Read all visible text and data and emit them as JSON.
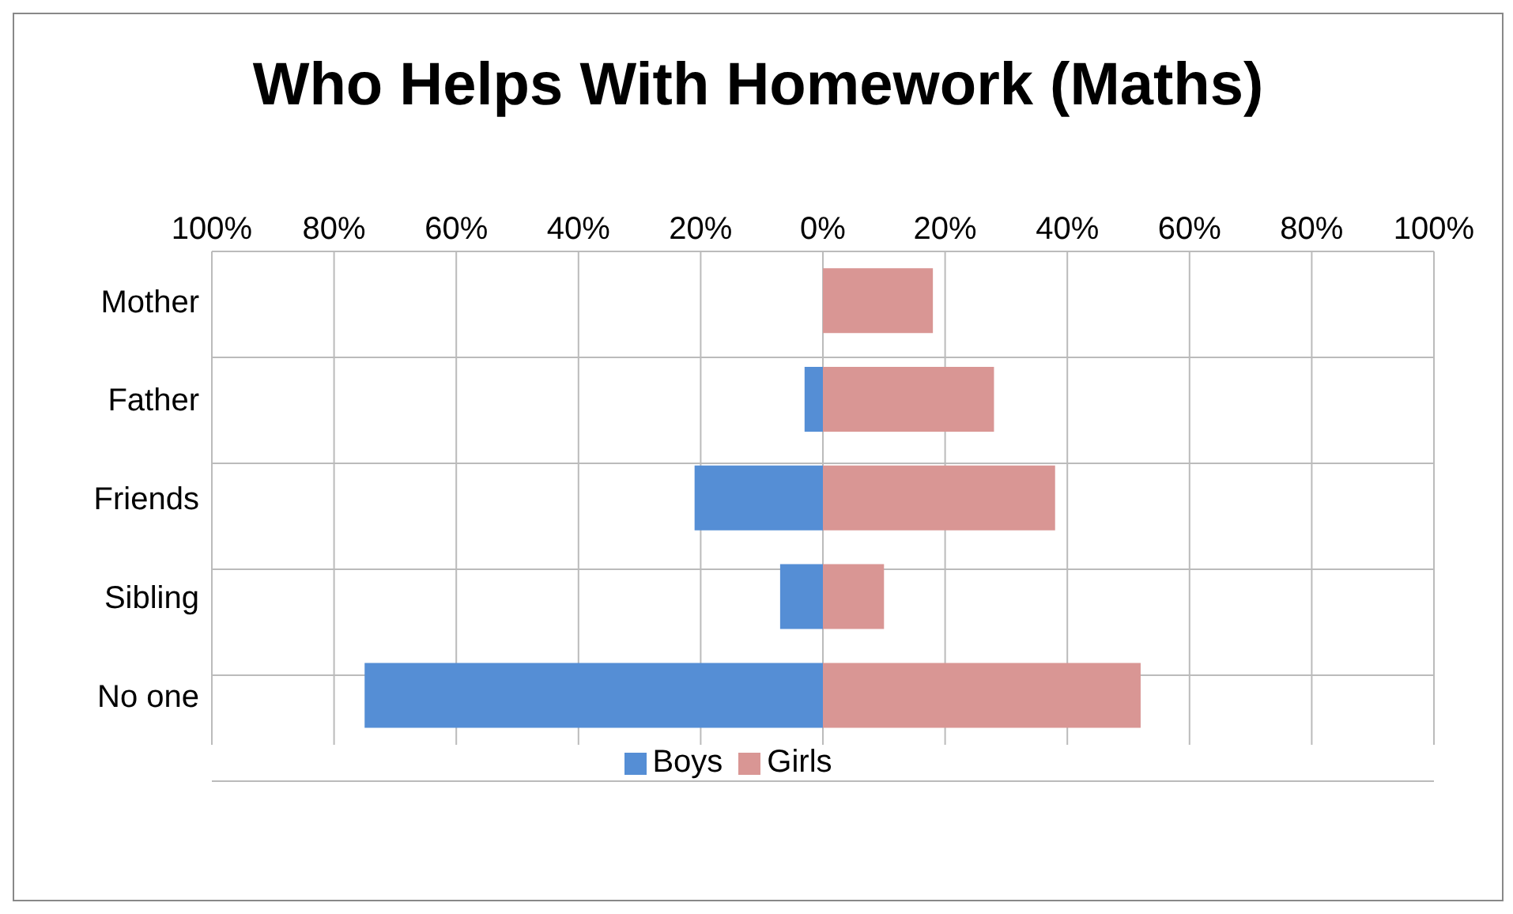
{
  "chart_data": {
    "type": "bar",
    "title": "Who Helps With Homework (Maths)",
    "orientation": "horizontal",
    "stacked": true,
    "categories": [
      "Mother",
      "Father",
      "Friends",
      "Sibling",
      "No one"
    ],
    "series": [
      {
        "name": "Boys",
        "color": "#558ed5",
        "values": [
          0,
          -3,
          -21,
          -7,
          -75
        ]
      },
      {
        "name": "Girls",
        "color": "#d99694",
        "values": [
          18,
          28,
          38,
          10,
          52
        ]
      }
    ],
    "xlim": [
      -100,
      100
    ],
    "xticks": [
      {
        "value": -100,
        "label": "100%"
      },
      {
        "value": -80,
        "label": "80%"
      },
      {
        "value": -60,
        "label": "60%"
      },
      {
        "value": -40,
        "label": "40%"
      },
      {
        "value": -20,
        "label": "20%"
      },
      {
        "value": 0,
        "label": "0%"
      },
      {
        "value": 20,
        "label": "20%"
      },
      {
        "value": 40,
        "label": "40%"
      },
      {
        "value": 60,
        "label": "60%"
      },
      {
        "value": 80,
        "label": "80%"
      },
      {
        "value": 100,
        "label": "100%"
      }
    ],
    "grid": true,
    "legend": "bottom"
  }
}
